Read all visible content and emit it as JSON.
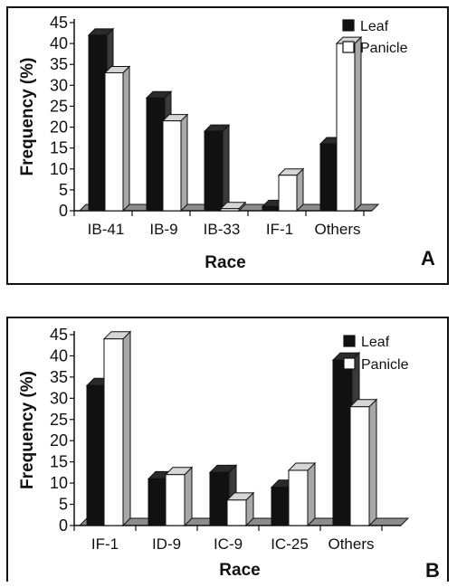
{
  "chart_data": [
    {
      "type": "bar",
      "panel_label": "A",
      "categories": [
        "IB-41",
        "IB-9",
        "IB-33",
        "IF-1",
        "Others"
      ],
      "series": [
        {
          "name": "Leaf",
          "values": [
            42,
            27,
            19,
            1,
            16
          ],
          "color": "#111111"
        },
        {
          "name": "Panicle",
          "values": [
            33,
            21.5,
            0.5,
            8.5,
            40
          ],
          "color": "#ffffff"
        }
      ],
      "xlabel": "Race",
      "ylabel": "Frequency (%)",
      "ylim": [
        0,
        45
      ],
      "yticks": [
        0,
        5,
        10,
        15,
        20,
        25,
        30,
        35,
        40,
        45
      ],
      "legend": "top-right",
      "grid": false
    },
    {
      "type": "bar",
      "panel_label": "B",
      "categories": [
        "IF-1",
        "ID-9",
        "IC-9",
        "IC-25",
        "Others"
      ],
      "series": [
        {
          "name": "Leaf",
          "values": [
            33,
            11,
            12.5,
            9,
            39
          ],
          "color": "#111111"
        },
        {
          "name": "Panicle",
          "values": [
            44,
            12,
            6,
            13,
            28
          ],
          "color": "#ffffff"
        }
      ],
      "xlabel": "Race",
      "ylabel": "Frequency (%)",
      "ylim": [
        0,
        45
      ],
      "yticks": [
        0,
        5,
        10,
        15,
        20,
        25,
        30,
        35,
        40,
        45
      ],
      "legend": "top-right",
      "grid": false
    }
  ]
}
